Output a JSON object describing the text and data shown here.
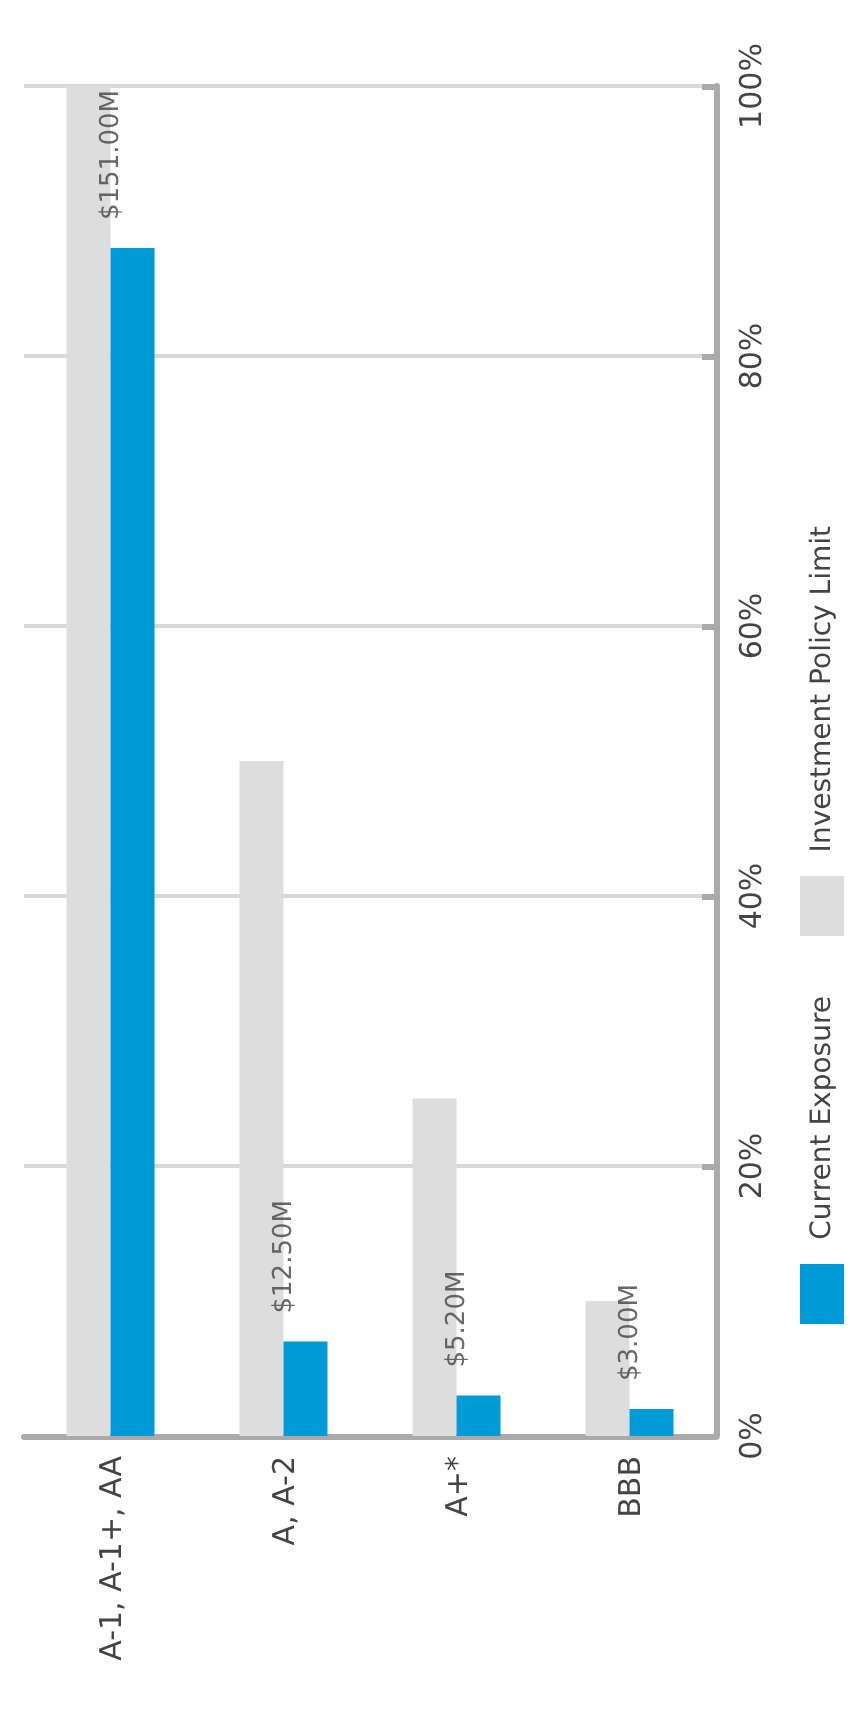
{
  "chart_data": {
    "type": "bar",
    "categories": [
      "A-1, A-1+, AA",
      "A, A-2",
      "A+*",
      "BBB"
    ],
    "series": [
      {
        "name": "Current Exposure",
        "color": "#009ad6",
        "values": [
          88,
          7,
          3,
          2
        ]
      },
      {
        "name": "Investment Policy Limit",
        "color": "#dddddd",
        "values": [
          100,
          50,
          25,
          10
        ]
      }
    ],
    "annotations": [
      {
        "text": "$151.00M",
        "x": "A-1, A-1+, AA",
        "y": 88
      },
      {
        "text": "$12.50M",
        "x": "A, A-2",
        "y": 7
      },
      {
        "text": "$5.20M",
        "x": "A+*",
        "y": 3
      },
      {
        "text": "$3.00M",
        "x": "BBB",
        "y": 2
      }
    ],
    "ylim": [
      0,
      100
    ],
    "yticks": [
      {
        "value": 0,
        "label": "0%"
      },
      {
        "value": 20,
        "label": "20%"
      },
      {
        "value": 40,
        "label": "40%"
      },
      {
        "value": 60,
        "label": "60%"
      },
      {
        "value": 80,
        "label": "80%"
      },
      {
        "value": 100,
        "label": "100%"
      }
    ],
    "grid": "y",
    "legend": "right"
  }
}
